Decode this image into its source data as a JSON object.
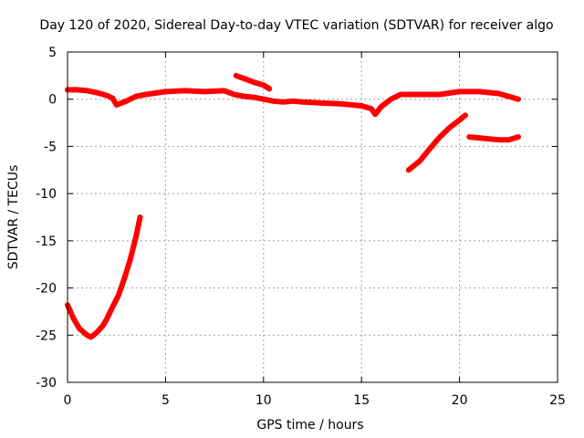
{
  "chart_data": {
    "type": "scatter",
    "title": "Day 120 of 2020, Sidereal Day-to-day VTEC variation (SDTVAR) for receiver algo",
    "xlabel": "GPS time / hours",
    "ylabel": "SDTVAR / TECUs",
    "xlim": [
      0,
      25
    ],
    "ylim": [
      -30,
      5
    ],
    "xticks": [
      0,
      5,
      10,
      15,
      20,
      25
    ],
    "yticks": [
      5,
      0,
      -5,
      -10,
      -15,
      -20,
      -25,
      -30
    ],
    "grid": true,
    "series_color": "#ff0000",
    "series": [
      {
        "name": "sdtvar-main-trace",
        "points": [
          [
            0.0,
            1.0
          ],
          [
            0.5,
            1.0
          ],
          [
            1.0,
            0.9
          ],
          [
            1.5,
            0.7
          ],
          [
            2.0,
            0.4
          ],
          [
            2.3,
            0.1
          ],
          [
            2.5,
            -0.6
          ],
          [
            3.0,
            -0.2
          ],
          [
            3.5,
            0.3
          ],
          [
            4.0,
            0.5
          ],
          [
            5.0,
            0.8
          ],
          [
            6.0,
            0.9
          ],
          [
            7.0,
            0.8
          ],
          [
            8.0,
            0.9
          ],
          [
            8.5,
            0.5
          ],
          [
            9.0,
            0.3
          ],
          [
            9.5,
            0.2
          ],
          [
            10.0,
            0.0
          ],
          [
            10.5,
            -0.2
          ],
          [
            11.0,
            -0.3
          ],
          [
            11.5,
            -0.2
          ],
          [
            12.0,
            -0.3
          ],
          [
            13.0,
            -0.4
          ],
          [
            14.0,
            -0.5
          ],
          [
            15.0,
            -0.7
          ],
          [
            15.5,
            -1.0
          ],
          [
            15.7,
            -1.6
          ],
          [
            16.0,
            -0.8
          ],
          [
            16.5,
            0.0
          ],
          [
            17.0,
            0.5
          ],
          [
            18.0,
            0.5
          ],
          [
            19.0,
            0.5
          ],
          [
            20.0,
            0.8
          ],
          [
            21.0,
            0.8
          ],
          [
            22.0,
            0.6
          ],
          [
            22.5,
            0.3
          ],
          [
            23.0,
            0.0
          ]
        ]
      },
      {
        "name": "sdtvar-short-segment",
        "points": [
          [
            8.6,
            2.5
          ],
          [
            9.0,
            2.2
          ],
          [
            9.5,
            1.8
          ],
          [
            10.0,
            1.5
          ],
          [
            10.3,
            1.1
          ]
        ]
      },
      {
        "name": "sdtvar-late-segment",
        "points": [
          [
            20.5,
            -4.0
          ],
          [
            21.0,
            -4.1
          ],
          [
            21.5,
            -4.2
          ],
          [
            22.0,
            -4.3
          ],
          [
            22.5,
            -4.3
          ],
          [
            23.0,
            -4.0
          ]
        ]
      },
      {
        "name": "sdtvar-rising-segment",
        "points": [
          [
            17.4,
            -7.5
          ],
          [
            18.0,
            -6.5
          ],
          [
            18.5,
            -5.2
          ],
          [
            19.0,
            -4.0
          ],
          [
            19.5,
            -3.0
          ],
          [
            20.0,
            -2.2
          ],
          [
            20.3,
            -1.7
          ]
        ]
      },
      {
        "name": "sdtvar-morning-dip",
        "points": [
          [
            0.0,
            -21.8
          ],
          [
            0.3,
            -23.2
          ],
          [
            0.6,
            -24.3
          ],
          [
            1.0,
            -25.0
          ],
          [
            1.2,
            -25.2
          ],
          [
            1.5,
            -24.7
          ],
          [
            1.8,
            -24.0
          ],
          [
            2.0,
            -23.3
          ],
          [
            2.3,
            -22.0
          ],
          [
            2.6,
            -20.8
          ],
          [
            2.9,
            -19.0
          ],
          [
            3.2,
            -17.0
          ],
          [
            3.5,
            -14.5
          ],
          [
            3.7,
            -12.5
          ]
        ]
      }
    ]
  }
}
